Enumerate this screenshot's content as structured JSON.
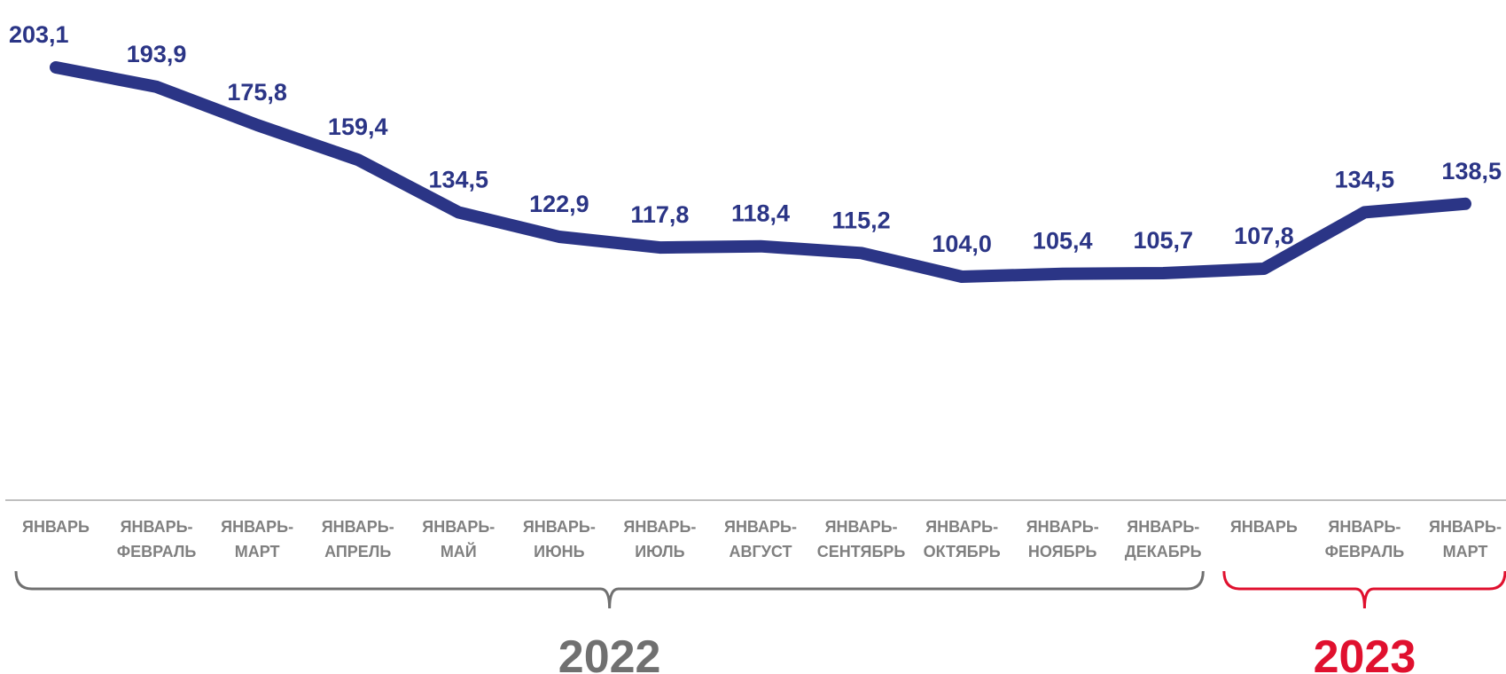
{
  "colors": {
    "series": "#2b3586",
    "axis": "#bfbfbf",
    "category_text": "#808080",
    "year_2022": "#707070",
    "year_2023": "#e0102e"
  },
  "chart_data": {
    "type": "line",
    "title": "",
    "xlabel": "",
    "ylabel": "",
    "grid": false,
    "legend": "none",
    "ylim": [
      0,
      210
    ],
    "categories": [
      [
        "ЯНВАРЬ"
      ],
      [
        "ЯНВАРЬ-",
        "ФЕВРАЛЬ"
      ],
      [
        "ЯНВАРЬ-",
        "МАРТ"
      ],
      [
        "ЯНВАРЬ-",
        "АПРЕЛЬ"
      ],
      [
        "ЯНВАРЬ-",
        "МАЙ"
      ],
      [
        "ЯНВАРЬ-",
        "ИЮНЬ"
      ],
      [
        "ЯНВАРЬ-",
        "ИЮЛЬ"
      ],
      [
        "ЯНВАРЬ-",
        "АВГУСТ"
      ],
      [
        "ЯНВАРЬ-",
        "СЕНТЯБРЬ"
      ],
      [
        "ЯНВАРЬ-",
        "ОКТЯБРЬ"
      ],
      [
        "ЯНВАРЬ-",
        "НОЯБРЬ"
      ],
      [
        "ЯНВАРЬ-",
        "ДЕКАБРЬ"
      ],
      [
        "ЯНВАРЬ"
      ],
      [
        "ЯНВАРЬ-",
        "ФЕВРАЛЬ"
      ],
      [
        "ЯНВАРЬ-",
        "МАРТ"
      ]
    ],
    "values": [
      203.1,
      193.9,
      175.8,
      159.4,
      134.5,
      122.9,
      117.8,
      118.4,
      115.2,
      104.0,
      105.4,
      105.7,
      107.8,
      134.5,
      138.5
    ],
    "value_labels": [
      "203,1",
      "193,9",
      "175,8",
      "159,4",
      "134,5",
      "122,9",
      "117,8",
      "118,4",
      "115,2",
      "104,0",
      "105,4",
      "105,7",
      "107,8",
      "134,5",
      "138,5"
    ],
    "groups": [
      {
        "label": "2022",
        "from": 0,
        "to": 11,
        "color": "#707070"
      },
      {
        "label": "2023",
        "from": 12,
        "to": 14,
        "color": "#e0102e"
      }
    ]
  }
}
